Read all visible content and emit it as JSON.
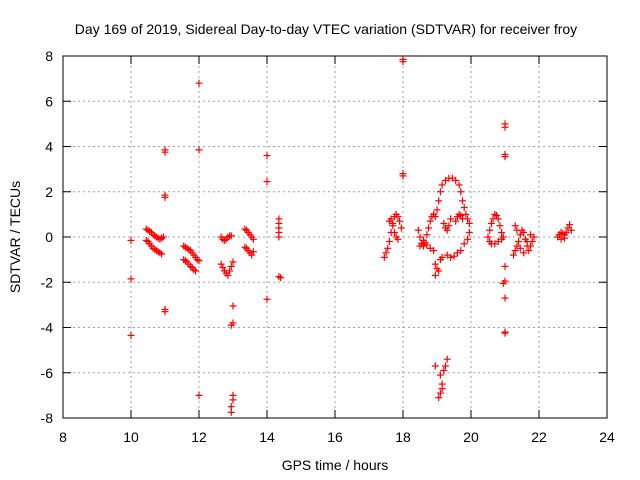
{
  "chart_data": {
    "type": "scatter",
    "title": "Day 169 of 2019, Sidereal Day-to-day VTEC variation (SDTVAR) for receiver froy",
    "xlabel": "GPS time / hours",
    "ylabel": "SDTVAR / TECUs",
    "xlim": [
      8,
      24
    ],
    "ylim": [
      -8,
      8
    ],
    "xticks": [
      8,
      10,
      12,
      14,
      16,
      18,
      20,
      22,
      24
    ],
    "yticks": [
      -8,
      -6,
      -4,
      -2,
      0,
      2,
      4,
      6,
      8
    ],
    "xtick_labels": [
      "8",
      "10",
      "12",
      "14",
      "16",
      "18",
      "20",
      "22",
      "24"
    ],
    "ytick_labels": [
      "-8",
      "-6",
      "-4",
      "-2",
      "0",
      "2",
      "4",
      "6",
      "8"
    ],
    "grid": true,
    "marker": "plus",
    "color": "#ff0000",
    "series": [
      {
        "name": "froy",
        "points": [
          [
            10.0,
            -0.15
          ],
          [
            10.0,
            -1.85
          ],
          [
            10.0,
            -4.35
          ],
          [
            10.45,
            0.35
          ],
          [
            10.5,
            0.3
          ],
          [
            10.55,
            0.25
          ],
          [
            10.6,
            0.2
          ],
          [
            10.65,
            0.1
          ],
          [
            10.7,
            0.05
          ],
          [
            10.75,
            0.0
          ],
          [
            10.8,
            -0.05
          ],
          [
            10.85,
            -0.1
          ],
          [
            10.9,
            -0.05
          ],
          [
            10.95,
            0.0
          ],
          [
            10.45,
            -0.15
          ],
          [
            10.5,
            -0.2
          ],
          [
            10.55,
            -0.3
          ],
          [
            10.6,
            -0.4
          ],
          [
            10.65,
            -0.5
          ],
          [
            10.7,
            -0.55
          ],
          [
            10.75,
            -0.6
          ],
          [
            10.8,
            -0.65
          ],
          [
            10.85,
            -0.7
          ],
          [
            10.9,
            -0.75
          ],
          [
            11.0,
            3.85
          ],
          [
            11.0,
            3.75
          ],
          [
            11.0,
            1.85
          ],
          [
            11.0,
            1.75
          ],
          [
            11.0,
            -3.2
          ],
          [
            11.0,
            -3.3
          ],
          [
            11.55,
            -0.4
          ],
          [
            11.6,
            -0.45
          ],
          [
            11.65,
            -0.5
          ],
          [
            11.7,
            -0.55
          ],
          [
            11.75,
            -0.6
          ],
          [
            11.8,
            -0.7
          ],
          [
            11.85,
            -0.8
          ],
          [
            11.9,
            -0.9
          ],
          [
            11.95,
            -1.0
          ],
          [
            12.0,
            -1.05
          ],
          [
            11.55,
            -1.0
          ],
          [
            11.6,
            -1.05
          ],
          [
            11.65,
            -1.1
          ],
          [
            11.7,
            -1.2
          ],
          [
            11.75,
            -1.3
          ],
          [
            11.8,
            -1.35
          ],
          [
            11.85,
            -1.45
          ],
          [
            11.9,
            -1.5
          ],
          [
            12.0,
            6.8
          ],
          [
            12.0,
            3.85
          ],
          [
            12.0,
            -7.0
          ],
          [
            12.65,
            0.0
          ],
          [
            12.7,
            -0.1
          ],
          [
            12.75,
            -0.15
          ],
          [
            12.8,
            -0.1
          ],
          [
            12.85,
            0.0
          ],
          [
            12.9,
            0.05
          ],
          [
            12.95,
            0.05
          ],
          [
            12.65,
            -1.2
          ],
          [
            12.7,
            -1.35
          ],
          [
            12.75,
            -1.5
          ],
          [
            12.8,
            -1.6
          ],
          [
            12.85,
            -1.7
          ],
          [
            12.9,
            -1.5
          ],
          [
            12.95,
            -1.3
          ],
          [
            13.0,
            -1.1
          ],
          [
            13.0,
            -3.05
          ],
          [
            13.0,
            -3.8
          ],
          [
            12.95,
            -3.9
          ],
          [
            13.0,
            -7.0
          ],
          [
            13.0,
            -7.2
          ],
          [
            12.95,
            -7.5
          ],
          [
            12.95,
            -7.75
          ],
          [
            13.35,
            0.35
          ],
          [
            13.4,
            0.3
          ],
          [
            13.45,
            0.2
          ],
          [
            13.5,
            0.1
          ],
          [
            13.55,
            0.0
          ],
          [
            13.6,
            -0.1
          ],
          [
            13.35,
            -0.45
          ],
          [
            13.4,
            -0.5
          ],
          [
            13.45,
            -0.6
          ],
          [
            13.5,
            -0.7
          ],
          [
            13.55,
            -0.8
          ],
          [
            13.6,
            -0.65
          ],
          [
            14.0,
            3.6
          ],
          [
            14.0,
            2.45
          ],
          [
            14.0,
            -2.75
          ],
          [
            14.35,
            0.8
          ],
          [
            14.35,
            0.6
          ],
          [
            14.35,
            0.4
          ],
          [
            14.35,
            0.2
          ],
          [
            14.35,
            0.0
          ],
          [
            14.35,
            -1.75
          ],
          [
            14.4,
            -1.8
          ],
          [
            17.45,
            -0.9
          ],
          [
            17.5,
            -0.7
          ],
          [
            17.55,
            -0.5
          ],
          [
            17.6,
            -0.2
          ],
          [
            17.65,
            0.2
          ],
          [
            17.7,
            0.6
          ],
          [
            17.75,
            0.9
          ],
          [
            17.8,
            1.0
          ],
          [
            17.85,
            0.9
          ],
          [
            17.9,
            0.7
          ],
          [
            17.95,
            0.4
          ],
          [
            17.6,
            0.7
          ],
          [
            17.65,
            0.8
          ],
          [
            17.7,
            0.5
          ],
          [
            17.75,
            0.2
          ],
          [
            17.8,
            0.0
          ],
          [
            17.85,
            -0.1
          ],
          [
            18.0,
            7.85
          ],
          [
            18.0,
            7.75
          ],
          [
            18.0,
            2.8
          ],
          [
            18.0,
            2.7
          ],
          [
            18.45,
            0.3
          ],
          [
            18.5,
            0.0
          ],
          [
            18.55,
            -0.3
          ],
          [
            18.6,
            -0.4
          ],
          [
            18.65,
            -0.25
          ],
          [
            18.7,
            0.1
          ],
          [
            18.75,
            0.4
          ],
          [
            18.8,
            0.7
          ],
          [
            18.85,
            0.9
          ],
          [
            18.9,
            1.0
          ],
          [
            18.95,
            0.9
          ],
          [
            18.5,
            -0.4
          ],
          [
            18.55,
            -0.3
          ],
          [
            18.6,
            -0.15
          ],
          [
            18.7,
            -0.35
          ],
          [
            18.8,
            -0.5
          ],
          [
            18.9,
            -0.6
          ],
          [
            18.95,
            -1.2
          ],
          [
            19.0,
            -1.4
          ],
          [
            19.05,
            -1.5
          ],
          [
            19.1,
            -1.0
          ],
          [
            19.15,
            -0.9
          ],
          [
            18.95,
            -1.7
          ],
          [
            18.95,
            -5.7
          ],
          [
            19.1,
            -6.1
          ],
          [
            19.15,
            -6.5
          ],
          [
            19.2,
            -5.9
          ],
          [
            19.25,
            -5.7
          ],
          [
            19.3,
            -5.4
          ],
          [
            19.05,
            -7.1
          ],
          [
            19.1,
            -6.9
          ],
          [
            19.15,
            -6.7
          ],
          [
            19.2,
            0.6
          ],
          [
            19.25,
            0.4
          ],
          [
            19.3,
            0.3
          ],
          [
            19.35,
            0.5
          ],
          [
            19.4,
            0.8
          ],
          [
            19.0,
            1.2
          ],
          [
            19.05,
            1.6
          ],
          [
            19.1,
            2.0
          ],
          [
            19.15,
            2.3
          ],
          [
            19.25,
            2.5
          ],
          [
            19.35,
            2.6
          ],
          [
            19.45,
            2.6
          ],
          [
            19.55,
            2.5
          ],
          [
            19.65,
            2.3
          ],
          [
            19.7,
            2.0
          ],
          [
            19.75,
            1.6
          ],
          [
            19.8,
            1.3
          ],
          [
            19.85,
            1.0
          ],
          [
            19.9,
            0.8
          ],
          [
            19.95,
            0.6
          ],
          [
            19.55,
            0.7
          ],
          [
            19.6,
            0.9
          ],
          [
            19.65,
            1.0
          ],
          [
            19.7,
            0.95
          ],
          [
            19.75,
            0.8
          ],
          [
            19.3,
            -0.8
          ],
          [
            19.4,
            -0.9
          ],
          [
            19.5,
            -0.85
          ],
          [
            19.6,
            -0.7
          ],
          [
            19.7,
            -0.6
          ],
          [
            19.8,
            -0.3
          ],
          [
            19.9,
            -0.1
          ],
          [
            19.95,
            0.2
          ],
          [
            20.5,
            0.0
          ],
          [
            20.55,
            0.3
          ],
          [
            20.6,
            0.6
          ],
          [
            20.65,
            0.8
          ],
          [
            20.7,
            1.0
          ],
          [
            20.75,
            0.95
          ],
          [
            20.8,
            0.8
          ],
          [
            20.85,
            0.5
          ],
          [
            20.9,
            0.2
          ],
          [
            20.95,
            0.0
          ],
          [
            20.55,
            -0.2
          ],
          [
            20.6,
            -0.3
          ],
          [
            20.7,
            -0.3
          ],
          [
            20.8,
            -0.2
          ],
          [
            20.9,
            -0.1
          ],
          [
            21.0,
            5.0
          ],
          [
            21.0,
            4.85
          ],
          [
            21.0,
            3.65
          ],
          [
            21.0,
            3.55
          ],
          [
            21.0,
            -1.3
          ],
          [
            21.0,
            -1.95
          ],
          [
            20.95,
            -2.05
          ],
          [
            21.0,
            -2.7
          ],
          [
            21.0,
            -4.25
          ],
          [
            21.0,
            -4.2
          ],
          [
            21.25,
            -0.8
          ],
          [
            21.3,
            -0.6
          ],
          [
            21.35,
            -0.4
          ],
          [
            21.4,
            -0.2
          ],
          [
            21.45,
            0.1
          ],
          [
            21.5,
            0.3
          ],
          [
            21.55,
            0.2
          ],
          [
            21.6,
            -0.1
          ],
          [
            21.65,
            -0.4
          ],
          [
            21.7,
            -0.6
          ],
          [
            21.75,
            -0.4
          ],
          [
            21.8,
            -0.2
          ],
          [
            21.85,
            0.0
          ],
          [
            21.3,
            0.5
          ],
          [
            21.35,
            0.3
          ],
          [
            21.45,
            -0.5
          ],
          [
            21.55,
            -0.7
          ],
          [
            21.65,
            -0.2
          ],
          [
            21.75,
            0.1
          ],
          [
            22.55,
            0.0
          ],
          [
            22.6,
            0.1
          ],
          [
            22.65,
            0.2
          ],
          [
            22.7,
            0.15
          ],
          [
            22.75,
            0.1
          ],
          [
            22.8,
            0.2
          ],
          [
            22.85,
            0.4
          ],
          [
            22.9,
            0.55
          ],
          [
            22.95,
            0.3
          ],
          [
            22.65,
            -0.1
          ],
          [
            22.75,
            -0.05
          ]
        ]
      }
    ]
  }
}
